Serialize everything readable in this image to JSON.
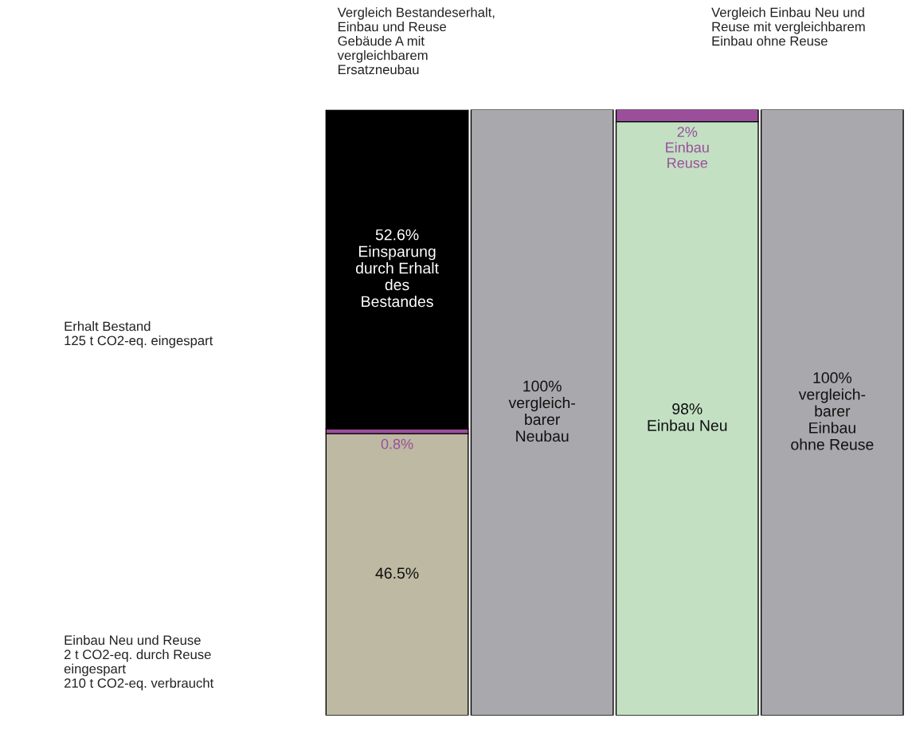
{
  "chart_data": {
    "type": "bar",
    "stacked": true,
    "categories": [
      null,
      null,
      null,
      null
    ],
    "series": [
      {
        "colors": [
          "#bdb9a2",
          "#a9a9ad",
          "#c3e0c3",
          "#a9a9ad"
        ],
        "values": [
          46.5,
          100,
          98,
          100
        ],
        "value_labels": [
          "46.5%",
          "100%\nvergleich-\nbarer\nNeubau",
          "98%\nEinbau Neu",
          "100%\nvergleich-\nbarer\nEinbau\nohne Reuse"
        ]
      },
      {
        "color": "#9b4f9b",
        "values": [
          0.8,
          null,
          2,
          null
        ],
        "value_labels": [
          "0.8%",
          null,
          "2%\nEinbau\nReuse",
          null
        ]
      },
      {
        "color": "#000000",
        "values": [
          52.6,
          null,
          null,
          null
        ],
        "value_labels": [
          "52.6%\nEinsparung\ndurch Erhalt\ndes\nBestandes",
          null,
          null,
          null
        ]
      }
    ],
    "annotations": [
      "Vergleich Bestandeserhalt,\nEinbau und Reuse\nGebäude A mit\nvergleichbarem\nErsatzneubau",
      "Vergleich Einbau Neu und\nReuse mit vergleichbarem\nEinbau ohne Reuse",
      "Erhalt Bestand\n125 t CO2-eq. eingespart",
      "Einbau Neu und Reuse\n2 t CO2-eq. durch Reuse\neingespart\n210 t CO2-eq. verbraucht"
    ]
  }
}
